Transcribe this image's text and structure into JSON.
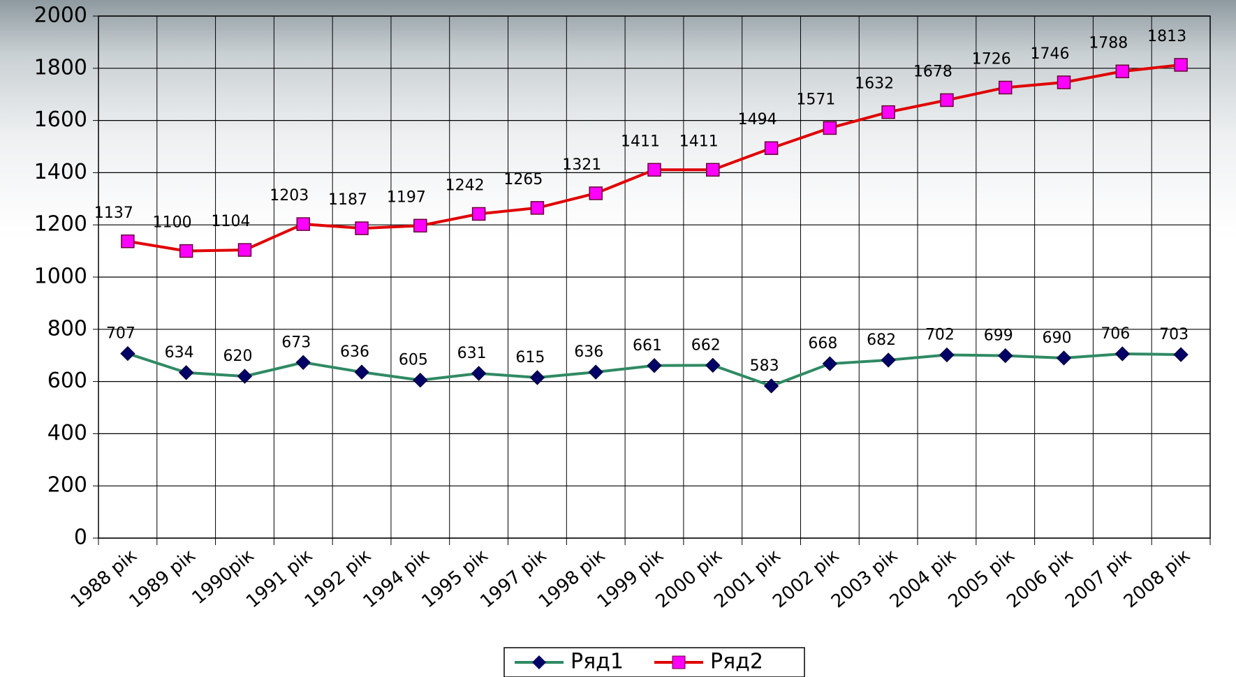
{
  "chart_data": {
    "type": "line",
    "categories": [
      "1988 рік",
      "1989 рік",
      "1990рік",
      "1991 рік",
      "1992 рік",
      "1994 рік",
      "1995 рік",
      "1997 рік",
      "1998 рік",
      "1999 рік",
      "2000 рік",
      "2001 рік",
      "2002 рік",
      "2003 рік",
      "2004 рік",
      "2005 рік",
      "2006 рік",
      "2007 рік",
      "2008 рік"
    ],
    "series": [
      {
        "name": "Ряд1",
        "color": "#2f8a64",
        "marker_color": "#000066",
        "marker": "diamond",
        "values": [
          707,
          634,
          620,
          673,
          636,
          605,
          631,
          615,
          636,
          661,
          662,
          583,
          668,
          682,
          702,
          699,
          690,
          706,
          703
        ]
      },
      {
        "name": "Ряд2",
        "color": "#e00000",
        "marker_color": "#ff00ff",
        "marker": "square",
        "values": [
          1137,
          1100,
          1104,
          1203,
          1187,
          1197,
          1242,
          1265,
          1321,
          1411,
          1411,
          1494,
          1571,
          1632,
          1678,
          1726,
          1746,
          1788,
          1813
        ]
      }
    ],
    "ylim": [
      0,
      2000
    ],
    "yticks": [
      0,
      200,
      400,
      600,
      800,
      1000,
      1200,
      1400,
      1600,
      1800,
      2000
    ],
    "grid": true,
    "legend": "bottom"
  }
}
